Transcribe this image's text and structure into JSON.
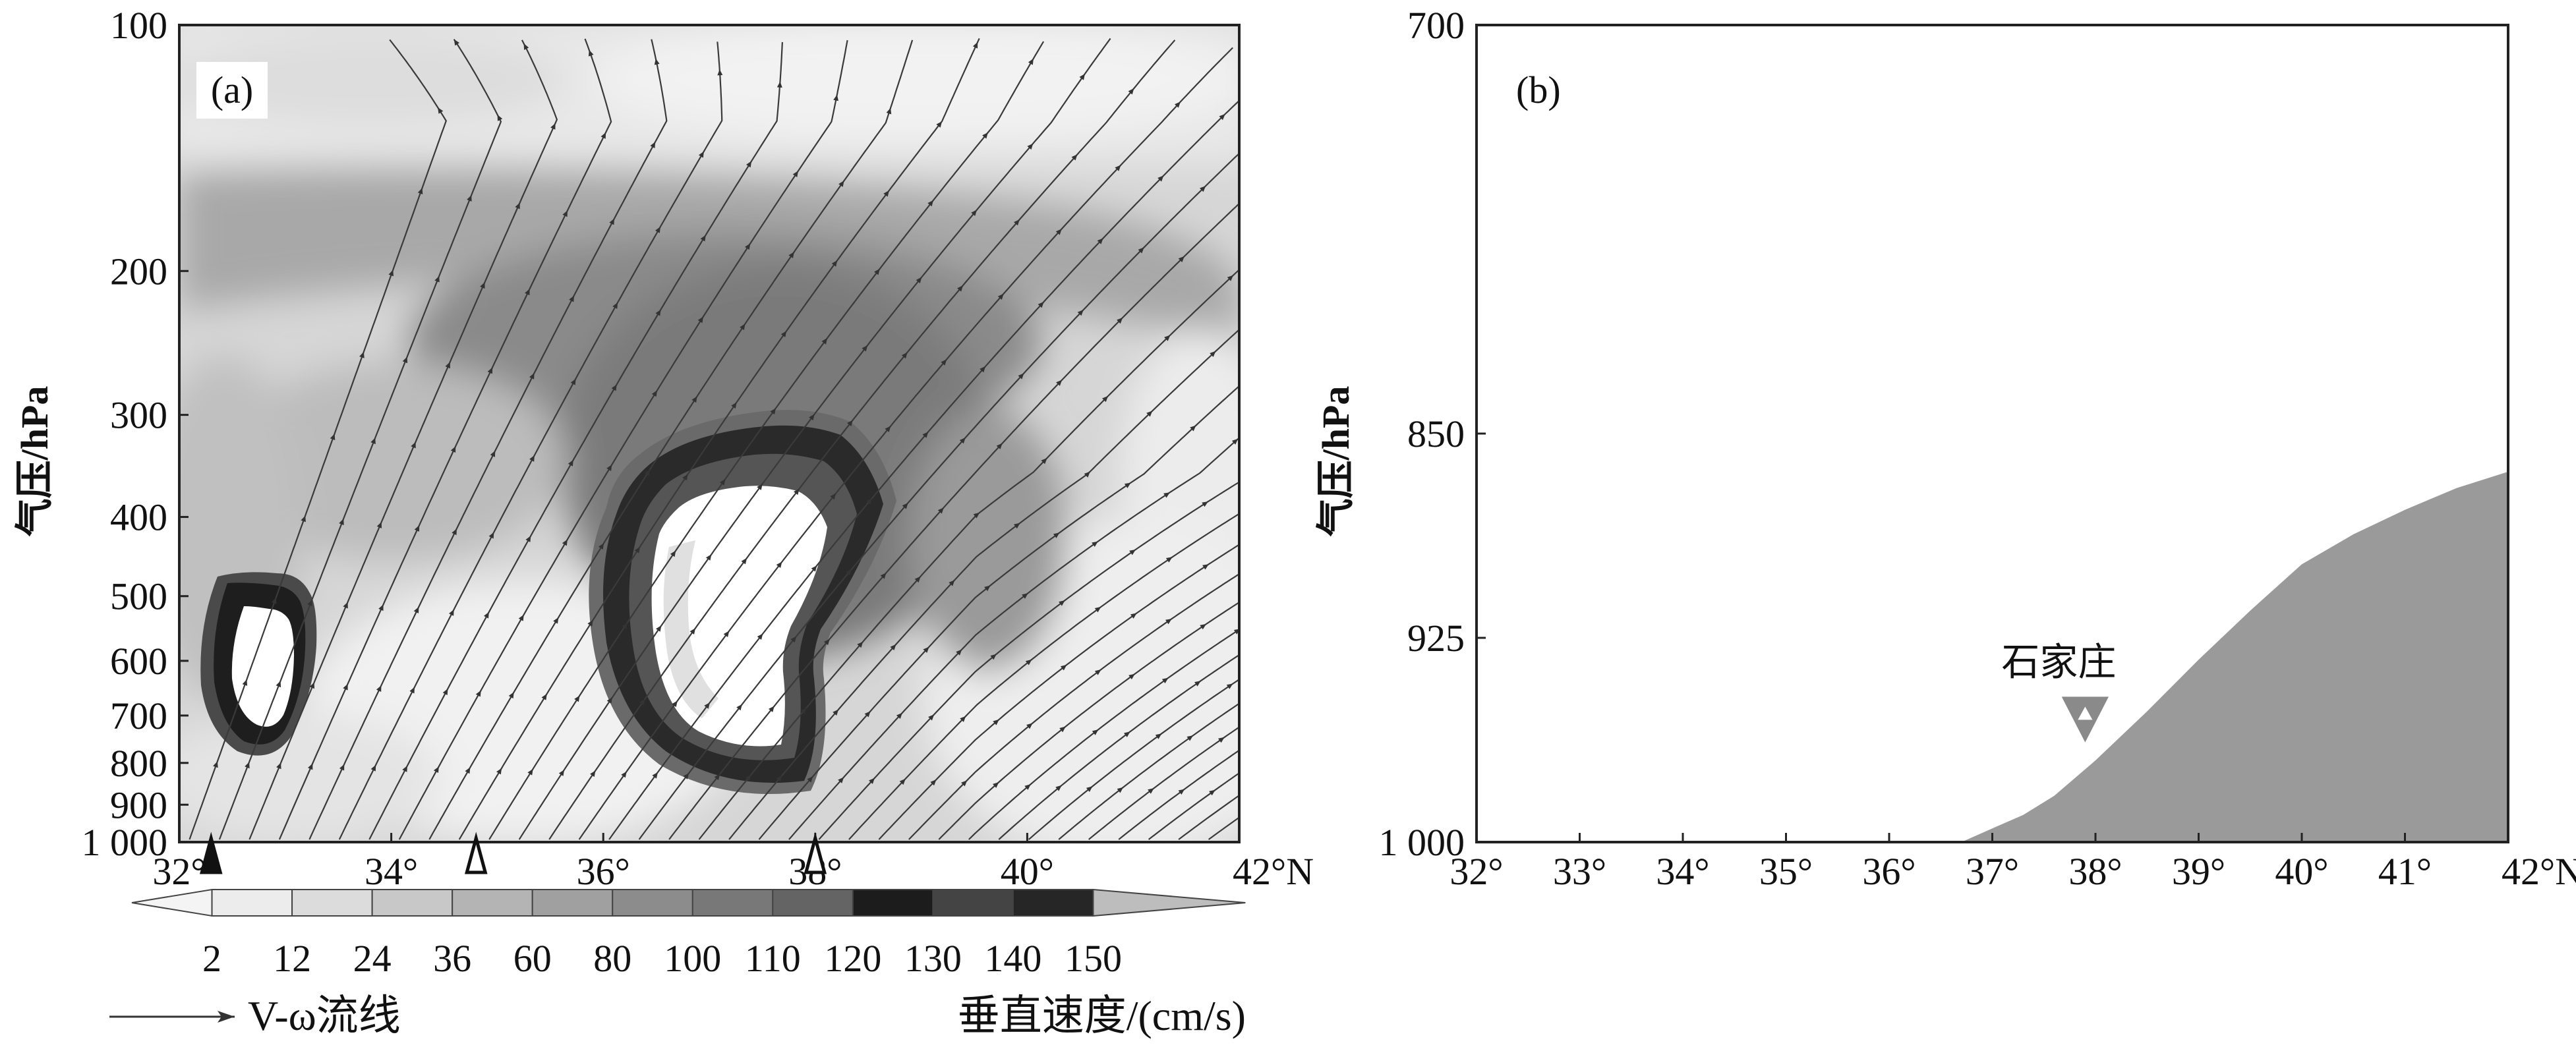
{
  "chart_data": [
    {
      "type": "heatmap",
      "panel_label": "(a)",
      "ylabel": "气压/hPa",
      "y_scale": "log",
      "y_ticks": [
        "100",
        "200",
        "300",
        "400",
        "500",
        "600",
        "700",
        "800",
        "900",
        "1 000"
      ],
      "y_tick_values": [
        100,
        200,
        300,
        400,
        500,
        600,
        700,
        800,
        900,
        1000
      ],
      "x_ticks": [
        "32°",
        "34°",
        "36°",
        "38°",
        "40°",
        "42°N"
      ],
      "x_tick_values": [
        32,
        34,
        36,
        38,
        40,
        42
      ],
      "xlim": [
        32,
        42
      ],
      "ylim": [
        1000,
        100
      ],
      "colorbar": {
        "ticks": [
          "2",
          "12",
          "24",
          "36",
          "60",
          "80",
          "100",
          "110",
          "120",
          "130",
          "140",
          "150"
        ],
        "colors": [
          "#ececec",
          "#dcdcdc",
          "#c8c8c8",
          "#b4b4b4",
          "#a0a0a0",
          "#8c8c8c",
          "#787878",
          "#646464",
          "#1c1c1c",
          "#444444",
          "#262626",
          "#e4e4e4",
          "#bdbdbd"
        ]
      },
      "station_markers": [
        {
          "x": 32.3,
          "style": "filled-triangle"
        },
        {
          "x": 34.8,
          "style": "open-triangle"
        },
        {
          "x": 38.0,
          "style": "open-triangle"
        }
      ],
      "streamline_legend": "V-ω流线",
      "colorbar_title": "垂直速度/(cm/s)"
    },
    {
      "type": "area",
      "panel_label": "(b)",
      "ylabel": "气压/hPa",
      "y_ticks": [
        "700",
        "850",
        "925",
        "1 000"
      ],
      "y_tick_values": [
        700,
        850,
        925,
        1000
      ],
      "x_ticks": [
        "32°",
        "33°",
        "34°",
        "35°",
        "36°",
        "37°",
        "38°",
        "39°",
        "40°",
        "41°",
        "42°N"
      ],
      "x_tick_values": [
        32,
        33,
        34,
        35,
        36,
        37,
        38,
        39,
        40,
        41,
        42
      ],
      "xlim": [
        32,
        42
      ],
      "ylim": [
        1000,
        700
      ],
      "terrain": {
        "x": [
          32,
          36.7,
          37.0,
          37.3,
          37.6,
          38.0,
          38.5,
          39.0,
          39.5,
          40.0,
          40.5,
          41.0,
          41.5,
          42.0
        ],
        "p": [
          1000,
          1000,
          995,
          990,
          983,
          970,
          952,
          933,
          915,
          898,
          887,
          878,
          870,
          864
        ]
      },
      "station": {
        "name": "石家庄",
        "x": 37.9,
        "p": 958
      }
    }
  ]
}
